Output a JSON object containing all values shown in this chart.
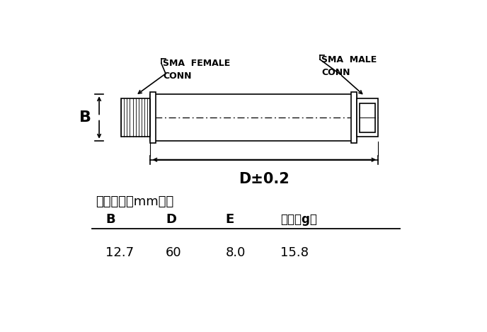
{
  "bg_color": "#ffffff",
  "line_color": "#000000",
  "fig_width": 6.88,
  "fig_height": 4.69,
  "dpi": 100,
  "table_title": "外观尺寸（mm）：",
  "table_headers": [
    "B",
    "D",
    "E",
    "重量（g）"
  ],
  "table_values": [
    "12.7",
    "60",
    "8.0",
    "15.8"
  ],
  "label_female": "SMA  FEMALE\nCONN",
  "label_male": "SMA  MALE\nCONN",
  "label_B": "B",
  "label_D": "D±0.2"
}
